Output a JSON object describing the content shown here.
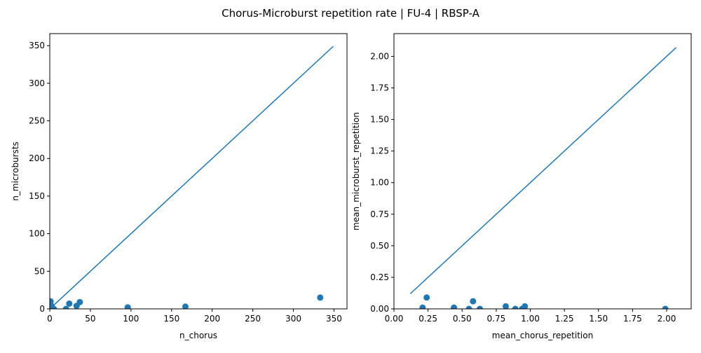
{
  "title": "Chorus-Microburst repetition rate | FU-4 | RBSP-A",
  "colors": {
    "series": "#1f77b4",
    "axis": "#000000"
  },
  "chart_data": [
    {
      "type": "scatter",
      "xlabel": "n_chorus",
      "ylabel": "n_microbursts",
      "xlim": [
        0,
        366
      ],
      "ylim": [
        0,
        366
      ],
      "xticks": [
        0,
        50,
        100,
        150,
        200,
        250,
        300,
        350
      ],
      "yticks": [
        0,
        50,
        100,
        150,
        200,
        250,
        300,
        350
      ],
      "xtick_labels": [
        "0",
        "50",
        "100",
        "150",
        "200",
        "250",
        "300",
        "350"
      ],
      "ytick_labels": [
        "0",
        "50",
        "100",
        "150",
        "200",
        "250",
        "300",
        "350"
      ],
      "grid": false,
      "series": [
        {
          "kind": "points",
          "x": [
            1,
            2,
            3,
            5,
            20,
            24,
            33,
            37,
            96,
            167,
            333
          ],
          "y": [
            10,
            4,
            1,
            0,
            0,
            7,
            4,
            9,
            2,
            3,
            15
          ]
        },
        {
          "kind": "line",
          "x": [
            1,
            349
          ],
          "y": [
            1,
            349
          ]
        }
      ]
    },
    {
      "type": "scatter",
      "xlabel": "mean_chorus_repetition",
      "ylabel": "mean_microburst_repetition",
      "xlim": [
        0,
        2.18
      ],
      "ylim": [
        0,
        2.18
      ],
      "xticks": [
        0,
        0.25,
        0.5,
        0.75,
        1.0,
        1.25,
        1.5,
        1.75,
        2.0
      ],
      "yticks": [
        0,
        0.25,
        0.5,
        0.75,
        1.0,
        1.25,
        1.5,
        1.75,
        2.0
      ],
      "xtick_labels": [
        "0.00",
        "0.25",
        "0.50",
        "0.75",
        "1.00",
        "1.25",
        "1.50",
        "1.75",
        "2.00"
      ],
      "ytick_labels": [
        "0.00",
        "0.25",
        "0.50",
        "0.75",
        "1.00",
        "1.25",
        "1.50",
        "1.75",
        "2.00"
      ],
      "grid": false,
      "series": [
        {
          "kind": "points",
          "x": [
            0.21,
            0.24,
            0.44,
            0.55,
            0.58,
            0.63,
            0.82,
            0.89,
            0.94,
            0.96,
            1.99
          ],
          "y": [
            0.01,
            0.09,
            0.01,
            0.0,
            0.06,
            0.0,
            0.02,
            0.0,
            0.0,
            0.02,
            0.0
          ]
        },
        {
          "kind": "line",
          "x": [
            0.12,
            2.07
          ],
          "y": [
            0.12,
            2.07
          ]
        }
      ]
    }
  ]
}
